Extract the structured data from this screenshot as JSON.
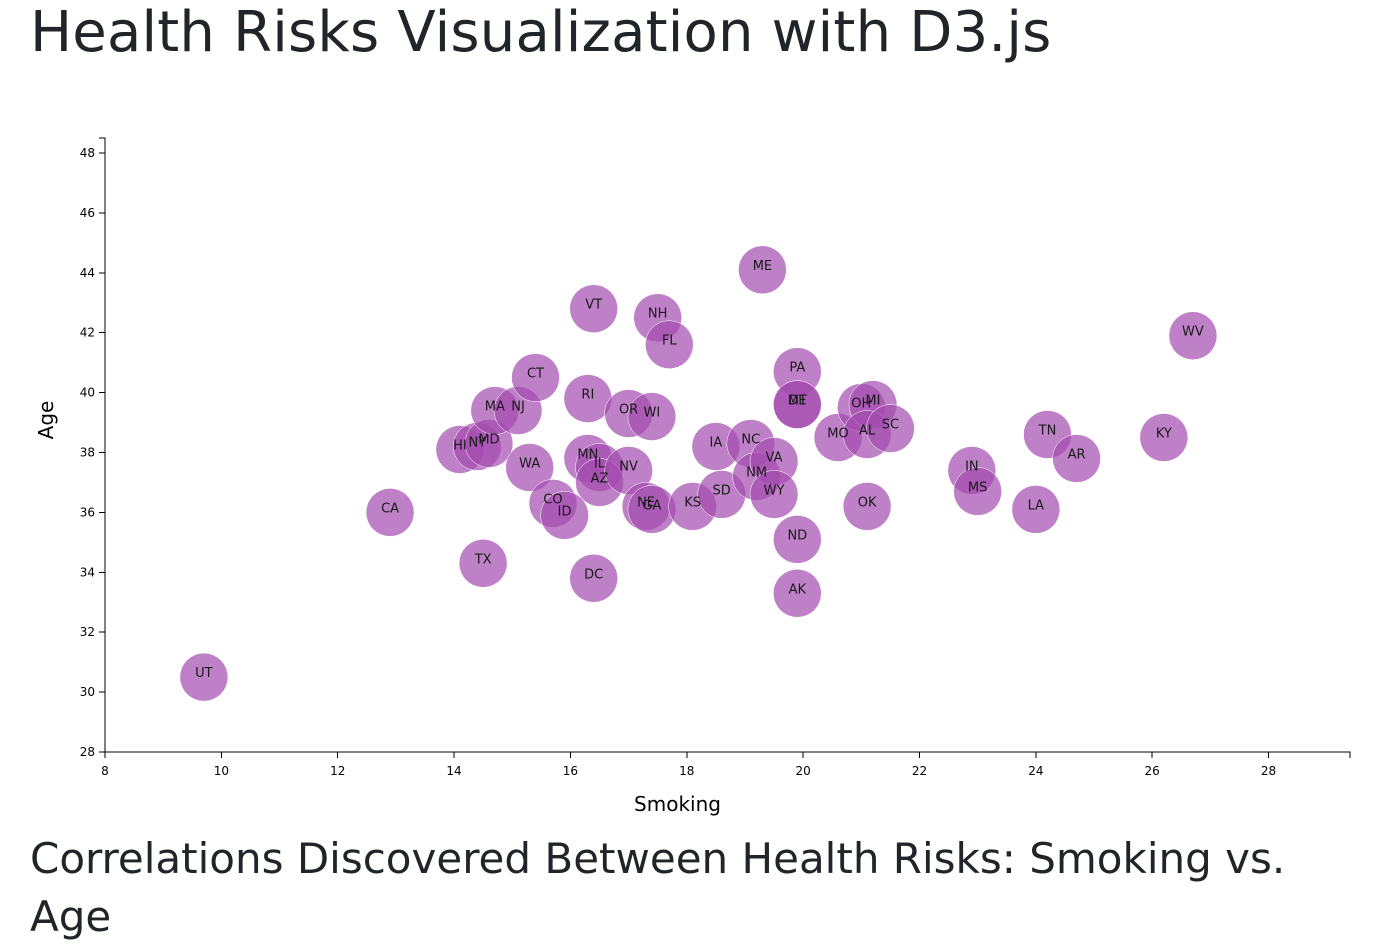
{
  "page": {
    "title": "Health Risks Visualization with D3.js",
    "section_heading": "Correlations Discovered Between Health Risks: Smoking vs. Age"
  },
  "chart_data": {
    "type": "scatter",
    "xlabel": "Smoking",
    "ylabel": "Age",
    "xlim": [
      8,
      29.4
    ],
    "ylim": [
      28,
      48.5
    ],
    "x_ticks": [
      8,
      10,
      12,
      14,
      16,
      18,
      20,
      22,
      24,
      26,
      28
    ],
    "y_ticks": [
      28,
      30,
      32,
      34,
      36,
      38,
      40,
      42,
      44,
      46,
      48
    ],
    "grid": false,
    "marker_color": "#a34aae",
    "points": [
      {
        "label": "UT",
        "x": 9.7,
        "y": 30.5
      },
      {
        "label": "CA",
        "x": 12.9,
        "y": 36.0
      },
      {
        "label": "HI",
        "x": 14.1,
        "y": 38.1
      },
      {
        "label": "NY",
        "x": 14.4,
        "y": 38.2
      },
      {
        "label": "MD",
        "x": 14.6,
        "y": 38.3
      },
      {
        "label": "TX",
        "x": 14.5,
        "y": 34.3
      },
      {
        "label": "MA",
        "x": 14.7,
        "y": 39.4
      },
      {
        "label": "NJ",
        "x": 15.1,
        "y": 39.4
      },
      {
        "label": "WA",
        "x": 15.3,
        "y": 37.5
      },
      {
        "label": "CT",
        "x": 15.4,
        "y": 40.5
      },
      {
        "label": "CO",
        "x": 15.7,
        "y": 36.3
      },
      {
        "label": "ID",
        "x": 15.9,
        "y": 35.9
      },
      {
        "label": "MN",
        "x": 16.3,
        "y": 37.8
      },
      {
        "label": "IL",
        "x": 16.5,
        "y": 37.5
      },
      {
        "label": "AZ",
        "x": 16.5,
        "y": 37.0
      },
      {
        "label": "RI",
        "x": 16.3,
        "y": 39.8
      },
      {
        "label": "VT",
        "x": 16.4,
        "y": 42.8
      },
      {
        "label": "DC",
        "x": 16.4,
        "y": 33.8
      },
      {
        "label": "NV",
        "x": 17.0,
        "y": 37.4
      },
      {
        "label": "OR",
        "x": 17.0,
        "y": 39.3
      },
      {
        "label": "WI",
        "x": 17.4,
        "y": 39.2
      },
      {
        "label": "NE",
        "x": 17.3,
        "y": 36.2
      },
      {
        "label": "GA",
        "x": 17.4,
        "y": 36.1
      },
      {
        "label": "NH",
        "x": 17.5,
        "y": 42.5
      },
      {
        "label": "FL",
        "x": 17.7,
        "y": 41.6
      },
      {
        "label": "KS",
        "x": 18.1,
        "y": 36.2
      },
      {
        "label": "IA",
        "x": 18.5,
        "y": 38.2
      },
      {
        "label": "SD",
        "x": 18.6,
        "y": 36.6
      },
      {
        "label": "NC",
        "x": 19.1,
        "y": 38.3
      },
      {
        "label": "NM",
        "x": 19.2,
        "y": 37.2
      },
      {
        "label": "VA",
        "x": 19.5,
        "y": 37.7
      },
      {
        "label": "WY",
        "x": 19.5,
        "y": 36.6
      },
      {
        "label": "ME",
        "x": 19.3,
        "y": 44.1
      },
      {
        "label": "PA",
        "x": 19.9,
        "y": 40.7
      },
      {
        "label": "DE",
        "x": 19.9,
        "y": 39.6
      },
      {
        "label": "MT",
        "x": 19.9,
        "y": 39.6
      },
      {
        "label": "ND",
        "x": 19.9,
        "y": 35.1
      },
      {
        "label": "AK",
        "x": 19.9,
        "y": 33.3
      },
      {
        "label": "MO",
        "x": 20.6,
        "y": 38.5
      },
      {
        "label": "OH",
        "x": 21.0,
        "y": 39.5
      },
      {
        "label": "MI",
        "x": 21.2,
        "y": 39.6
      },
      {
        "label": "AL",
        "x": 21.1,
        "y": 38.6
      },
      {
        "label": "SC",
        "x": 21.5,
        "y": 38.8
      },
      {
        "label": "OK",
        "x": 21.1,
        "y": 36.2
      },
      {
        "label": "IN",
        "x": 22.9,
        "y": 37.4
      },
      {
        "label": "MS",
        "x": 23.0,
        "y": 36.7
      },
      {
        "label": "LA",
        "x": 24.0,
        "y": 36.1
      },
      {
        "label": "TN",
        "x": 24.2,
        "y": 38.6
      },
      {
        "label": "AR",
        "x": 24.7,
        "y": 37.8
      },
      {
        "label": "KY",
        "x": 26.2,
        "y": 38.5
      },
      {
        "label": "WV",
        "x": 26.7,
        "y": 41.9
      }
    ]
  }
}
